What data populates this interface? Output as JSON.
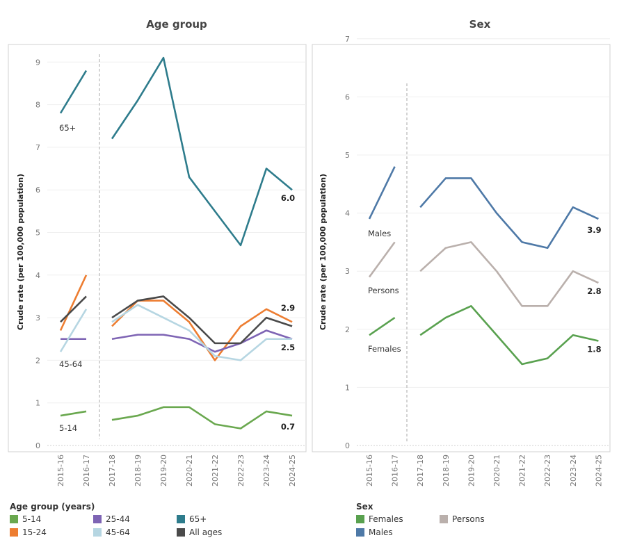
{
  "chart_data": [
    {
      "type": "line",
      "title": "Age group",
      "ylabel": "Crude rate (per 100,000 population)",
      "ylim": [
        0,
        9.5
      ],
      "yticks": [
        0,
        1,
        2,
        3,
        4,
        5,
        6,
        7,
        8,
        9
      ],
      "categories": [
        "2015-16",
        "2016-17",
        "2017-18",
        "2018-19",
        "2019-20",
        "2020-21",
        "2021-22",
        "2022-23",
        "2023-24",
        "2024-25"
      ],
      "break_after": "2016-17",
      "series": [
        {
          "name": "5-14",
          "color": "#6aa84f",
          "values": [
            0.7,
            0.8,
            0.6,
            0.7,
            0.9,
            0.9,
            0.5,
            0.4,
            0.8,
            0.7
          ],
          "start_label": "5-14",
          "end_label": "0.7"
        },
        {
          "name": "15-24",
          "color": "#ed7d31",
          "values": [
            2.7,
            4.0,
            2.8,
            3.4,
            3.4,
            2.9,
            2.0,
            2.8,
            3.2,
            2.9
          ],
          "start_label": "",
          "end_label": "2.9"
        },
        {
          "name": "25-44",
          "color": "#7e64b4",
          "values": [
            2.5,
            2.5,
            2.5,
            2.6,
            2.6,
            2.5,
            2.2,
            2.4,
            2.7,
            2.5
          ],
          "start_label": "",
          "end_label": ""
        },
        {
          "name": "45-64",
          "color": "#b6d6e2",
          "values": [
            2.2,
            3.2,
            2.9,
            3.3,
            3.0,
            2.7,
            2.1,
            2.0,
            2.5,
            2.5
          ],
          "start_label": "45-64",
          "end_label": "2.5"
        },
        {
          "name": "65+",
          "color": "#2e7c8c",
          "values": [
            7.8,
            8.8,
            7.2,
            8.1,
            9.1,
            6.3,
            5.5,
            4.7,
            6.5,
            6.0
          ],
          "start_label": "65+",
          "end_label": "6.0"
        },
        {
          "name": "All ages",
          "color": "#4a4a4a",
          "values": [
            2.9,
            3.5,
            3.0,
            3.4,
            3.5,
            3.0,
            2.4,
            2.4,
            3.0,
            2.8
          ],
          "start_label": "",
          "end_label": ""
        }
      ]
    },
    {
      "type": "line",
      "title": "Sex",
      "ylabel": "Crude rate (per 100,000 population)",
      "ylim": [
        0,
        7.1
      ],
      "yticks": [
        0,
        1,
        2,
        3,
        4,
        5,
        6,
        7
      ],
      "categories": [
        "2015-16",
        "2016-17",
        "2017-18",
        "2018-19",
        "2019-20",
        "2020-21",
        "2021-22",
        "2022-23",
        "2023-24",
        "2024-25"
      ],
      "break_after": "2016-17",
      "series": [
        {
          "name": "Females",
          "color": "#59a14f",
          "values": [
            1.9,
            2.2,
            1.9,
            2.2,
            2.4,
            1.9,
            1.4,
            1.5,
            1.9,
            1.8
          ],
          "start_label": "Females",
          "end_label": "1.8"
        },
        {
          "name": "Persons",
          "color": "#bab0ac",
          "values": [
            2.9,
            3.5,
            3.0,
            3.4,
            3.5,
            3.0,
            2.4,
            2.4,
            3.0,
            2.8
          ],
          "start_label": "Persons",
          "end_label": "2.8"
        },
        {
          "name": "Males",
          "color": "#4e79a7",
          "values": [
            3.9,
            4.8,
            4.1,
            4.6,
            4.6,
            4.0,
            3.5,
            3.4,
            4.1,
            3.9
          ],
          "start_label": "Males",
          "end_label": "3.9"
        }
      ]
    }
  ],
  "legends": {
    "age": {
      "title": "Age group (years)",
      "items": [
        {
          "label": "5-14",
          "color": "#6aa84f"
        },
        {
          "label": "25-44",
          "color": "#7e64b4"
        },
        {
          "label": "65+",
          "color": "#2e7c8c"
        },
        {
          "label": "15-24",
          "color": "#ed7d31"
        },
        {
          "label": "45-64",
          "color": "#b6d6e2"
        },
        {
          "label": "All ages",
          "color": "#4a4a4a"
        }
      ]
    },
    "sex": {
      "title": "Sex",
      "items": [
        {
          "label": "Females",
          "color": "#59a14f"
        },
        {
          "label": "Persons",
          "color": "#bab0ac"
        },
        {
          "label": "Males",
          "color": "#4e79a7"
        }
      ]
    }
  }
}
